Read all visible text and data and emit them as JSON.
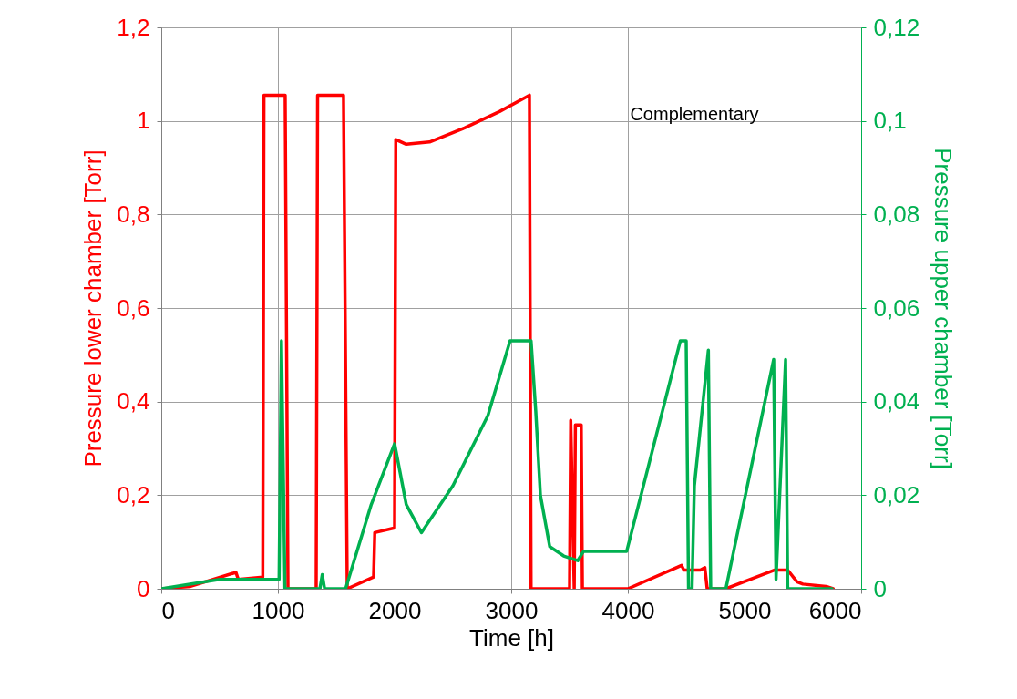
{
  "chart_data": {
    "type": "line",
    "xlabel": "Time [h]",
    "ylabel": "Pressure lower chamber [Torr]",
    "y2label": "Pressure upper chamber [Torr]",
    "annotations": [
      "Complementary"
    ],
    "xlim": [
      0,
      6000
    ],
    "xticks": [
      0,
      1000,
      2000,
      3000,
      4000,
      5000,
      6000
    ],
    "ylim": [
      0,
      1.2
    ],
    "yticks": [
      0,
      {
        "value": 0.2,
        "label": "0,2"
      },
      {
        "value": 0.4,
        "label": "0,4"
      },
      {
        "value": 0.6,
        "label": "0,6"
      },
      {
        "value": 0.8,
        "label": "0,8"
      },
      1,
      {
        "value": 1.2,
        "label": "1,2"
      }
    ],
    "y2lim": [
      0,
      0.12
    ],
    "y2ticks": [
      0,
      {
        "value": 0.02,
        "label": "0,02"
      },
      {
        "value": 0.04,
        "label": "0,04"
      },
      {
        "value": 0.06,
        "label": "0,06"
      },
      {
        "value": 0.08,
        "label": "0,08"
      },
      {
        "value": 0.1,
        "label": "0,1"
      },
      {
        "value": 0.12,
        "label": "0,12"
      }
    ],
    "grid": true,
    "line_style": "solid",
    "series": [
      {
        "color": "#ff0000",
        "x": [
          0,
          250,
          640,
          660,
          870,
          880,
          1062,
          1086,
          1328,
          1340,
          1562,
          1594,
          1820,
          1830,
          2000,
          2010,
          2100,
          2300,
          2600,
          2900,
          3156,
          3170,
          3500,
          3510,
          3540,
          3550,
          3600,
          3610,
          4000,
          4460,
          4480,
          4620,
          4660,
          4680,
          4840,
          5260,
          5370,
          5450,
          5500,
          5700,
          5760
        ],
        "values": [
          0,
          0.005,
          0.035,
          0.02,
          0.025,
          1.055,
          1.055,
          0,
          0,
          1.055,
          1.055,
          0,
          0.025,
          0.12,
          0.13,
          0.96,
          0.95,
          0.955,
          0.985,
          1.02,
          1.055,
          0,
          0,
          0.36,
          0,
          0.35,
          0.35,
          0,
          0,
          0.05,
          0.04,
          0.04,
          0.045,
          0,
          0,
          0.04,
          0.04,
          0.015,
          0.01,
          0.005,
          0
        ]
      },
      {
        "color": "#00b050",
        "axis": "y2",
        "x": [
          0,
          500,
          1000,
          1010,
          1030,
          1060,
          1360,
          1380,
          1400,
          1580,
          1800,
          2000,
          2100,
          2230,
          2500,
          2800,
          2990,
          3170,
          3210,
          3250,
          3330,
          3450,
          3570,
          3620,
          3990,
          4450,
          4500,
          4520,
          4550,
          4570,
          4690,
          4710,
          4840,
          5250,
          5270,
          5352,
          5370,
          5750
        ],
        "values": [
          0,
          0.002,
          0.002,
          0.002,
          0.053,
          0,
          0,
          0.003,
          0,
          0,
          0.018,
          0.031,
          0.018,
          0.012,
          0.022,
          0.037,
          0.053,
          0.053,
          0.038,
          0.02,
          0.009,
          0.007,
          0.006,
          0.008,
          0.008,
          0.053,
          0.053,
          0,
          0,
          0.022,
          0.051,
          0,
          0,
          0.049,
          0.002,
          0.049,
          0,
          0
        ]
      }
    ]
  }
}
